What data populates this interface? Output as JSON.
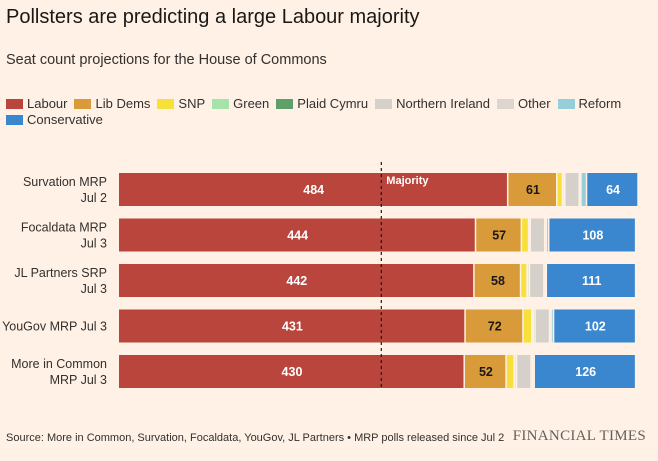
{
  "chart_data": {
    "type": "bar",
    "orientation": "horizontal",
    "stacked": true,
    "title": "Pollsters are predicting a large Labour majority",
    "subtitle": "Seat count projections for the House of Commons",
    "categories": [
      [
        "Survation MRP",
        "Jul 2"
      ],
      [
        "Focaldata MRP",
        "Jul 3"
      ],
      [
        "JL Partners SRP",
        "Jul 3"
      ],
      [
        "YouGov MRP Jul 3"
      ],
      [
        "More in Common",
        "MRP Jul 3"
      ]
    ],
    "total_seats": 650,
    "majority_line": 326,
    "majority_label": "Majority",
    "series": [
      {
        "name": "Labour",
        "color": "#b9453c",
        "values": [
          484,
          444,
          442,
          431,
          430
        ],
        "labeled": true
      },
      {
        "name": "Lib Dems",
        "color": "#d99a3a",
        "values": [
          61,
          57,
          58,
          72,
          52
        ],
        "labeled": true
      },
      {
        "name": "SNP",
        "color": "#f7df3c",
        "values": [
          7,
          9,
          8,
          11,
          10
        ],
        "labeled": false
      },
      {
        "name": "Green",
        "color": "#a6e3a8",
        "values": [
          2,
          1,
          1,
          2,
          1
        ],
        "labeled": false
      },
      {
        "name": "Plaid Cymru",
        "color": "#5e9f6a",
        "values": [
          1,
          1,
          2,
          2,
          2
        ],
        "labeled": false
      },
      {
        "name": "Northern Ireland",
        "color": "#d6d0ca",
        "values": [
          18,
          18,
          18,
          18,
          18
        ],
        "labeled": false
      },
      {
        "name": "Other",
        "color": "#ddd6cf",
        "values": [
          2,
          2,
          2,
          2,
          2
        ],
        "labeled": false
      },
      {
        "name": "Reform",
        "color": "#96cfd9",
        "values": [
          7,
          3,
          1,
          3,
          2
        ],
        "labeled": false
      },
      {
        "name": "Conservative",
        "color": "#3a86cf",
        "values": [
          64,
          108,
          111,
          102,
          126
        ],
        "labeled": true
      }
    ]
  },
  "footer": {
    "source": "Source: More in Common, Survation, Focaldata, YouGov, JL Partners • MRP polls released since Jul 2",
    "brand": "FINANCIAL TIMES"
  }
}
